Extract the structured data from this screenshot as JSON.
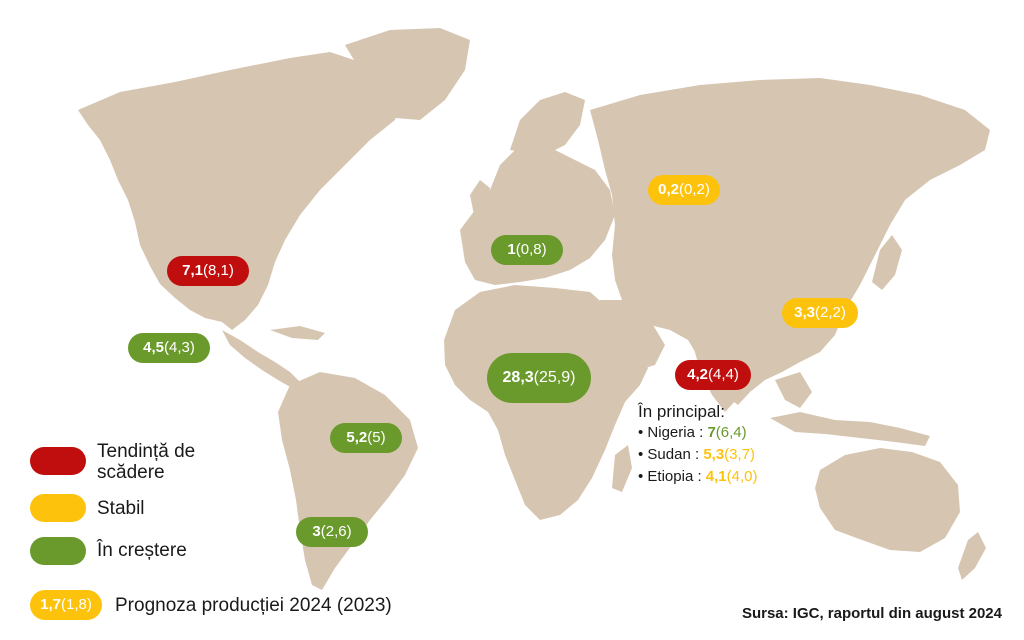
{
  "colors": {
    "decreasing": "#c00d0d",
    "stable": "#fdc20b",
    "increasing": "#6a9a2b",
    "land": "#d6c6b1"
  },
  "regions": [
    {
      "id": "usa",
      "value": "7,1",
      "prev": "(8,1)",
      "trend": "decreasing"
    },
    {
      "id": "mexico",
      "value": "4,5",
      "prev": "(4,3)",
      "trend": "increasing"
    },
    {
      "id": "brazil",
      "value": "5,2",
      "prev": "(5)",
      "trend": "increasing"
    },
    {
      "id": "argentina",
      "value": "3",
      "prev": "(2,6)",
      "trend": "increasing"
    },
    {
      "id": "europe",
      "value": "1",
      "prev": "(0,8)",
      "trend": "increasing"
    },
    {
      "id": "russia",
      "value": "0,2",
      "prev": "(0,2)",
      "trend": "stable"
    },
    {
      "id": "china",
      "value": "3,3",
      "prev": "(2,2)",
      "trend": "stable"
    },
    {
      "id": "india",
      "value": "4,2",
      "prev": "(4,4)",
      "trend": "decreasing"
    },
    {
      "id": "africa",
      "value": "28,3",
      "prev": "(25,9)",
      "trend": "increasing"
    }
  ],
  "africa_note": {
    "title": "În principal:",
    "items": [
      {
        "label": "Nigeria :",
        "value": "7",
        "prev": "(6,4)",
        "trend": "increasing"
      },
      {
        "label": "Sudan :",
        "value": "5,3",
        "prev": "(3,7)",
        "trend": "stable"
      },
      {
        "label": "Etiopia :",
        "value": "4,1",
        "prev": "(4,0)",
        "trend": "stable"
      }
    ]
  },
  "legend": {
    "decreasing": "Tendință de scădere",
    "stable": "Stabil",
    "increasing": "În creștere",
    "sample_value": "1,7",
    "sample_prev": "(1,8)",
    "sample_label": "Prognoza producției 2024 (2023)"
  },
  "source": "Sursa: IGC, raportul din august 2024"
}
